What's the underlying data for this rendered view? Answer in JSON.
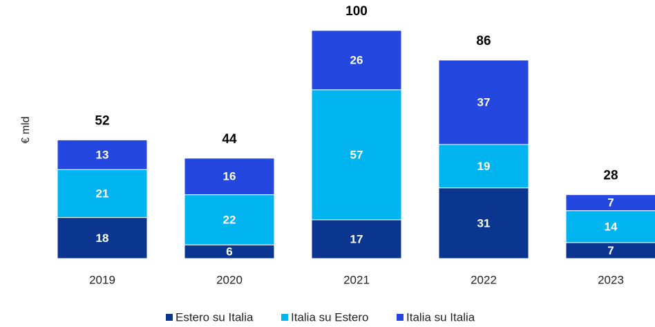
{
  "chart_data": {
    "type": "stacked-bar",
    "y_label": "€ mld",
    "categories": [
      "2019",
      "2020",
      "2021",
      "2022",
      "2023"
    ],
    "series": [
      {
        "name": "Estero su Italia",
        "color": "#0a3690",
        "values": [
          18,
          6,
          17,
          31,
          7
        ]
      },
      {
        "name": "Italia su Estero",
        "color": "#00b5ef",
        "values": [
          21,
          22,
          57,
          19,
          14
        ]
      },
      {
        "name": "Italia su Italia",
        "color": "#2447df",
        "values": [
          13,
          16,
          26,
          37,
          7
        ]
      }
    ],
    "totals": [
      52,
      44,
      100,
      86,
      28
    ]
  }
}
